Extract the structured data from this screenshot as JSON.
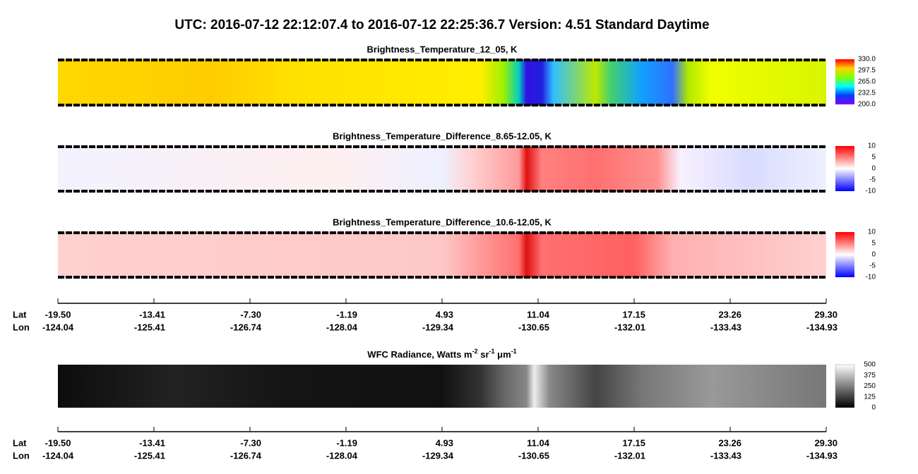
{
  "title": "UTC:  2016-07-12   22:12:07.4  to  2016-07-12   22:25:36.7    Version: 4.51  Standard Daytime",
  "panels": [
    {
      "title": "Brightness_Temperature_12_05, K",
      "colorbar_ticks": [
        "330.0",
        "297.5",
        "265.0",
        "232.5",
        "200.0"
      ]
    },
    {
      "title": "Brightness_Temperature_Difference_8.65-12.05, K",
      "colorbar_ticks": [
        "10",
        "5",
        "0",
        "-5",
        "-10"
      ]
    },
    {
      "title": "Brightness_Temperature_Difference_10.6-12.05, K",
      "colorbar_ticks": [
        "10",
        "5",
        "0",
        "-5",
        "-10"
      ]
    },
    {
      "title_parts": [
        "WFC Radiance, Watts m",
        "-2",
        " sr",
        "-1",
        " μm",
        "-1"
      ],
      "colorbar_ticks": [
        "500",
        "375",
        "250",
        "125",
        "0"
      ]
    }
  ],
  "axis": {
    "lat_label": "Lat",
    "lon_label": "Lon",
    "lat": [
      "-19.50",
      "-13.41",
      "-7.30",
      "-1.19",
      "4.93",
      "11.04",
      "17.15",
      "23.26",
      "29.30"
    ],
    "lon": [
      "-124.04",
      "-125.41",
      "-126.74",
      "-128.04",
      "-129.34",
      "-130.65",
      "-132.01",
      "-133.43",
      "-134.93"
    ]
  }
}
